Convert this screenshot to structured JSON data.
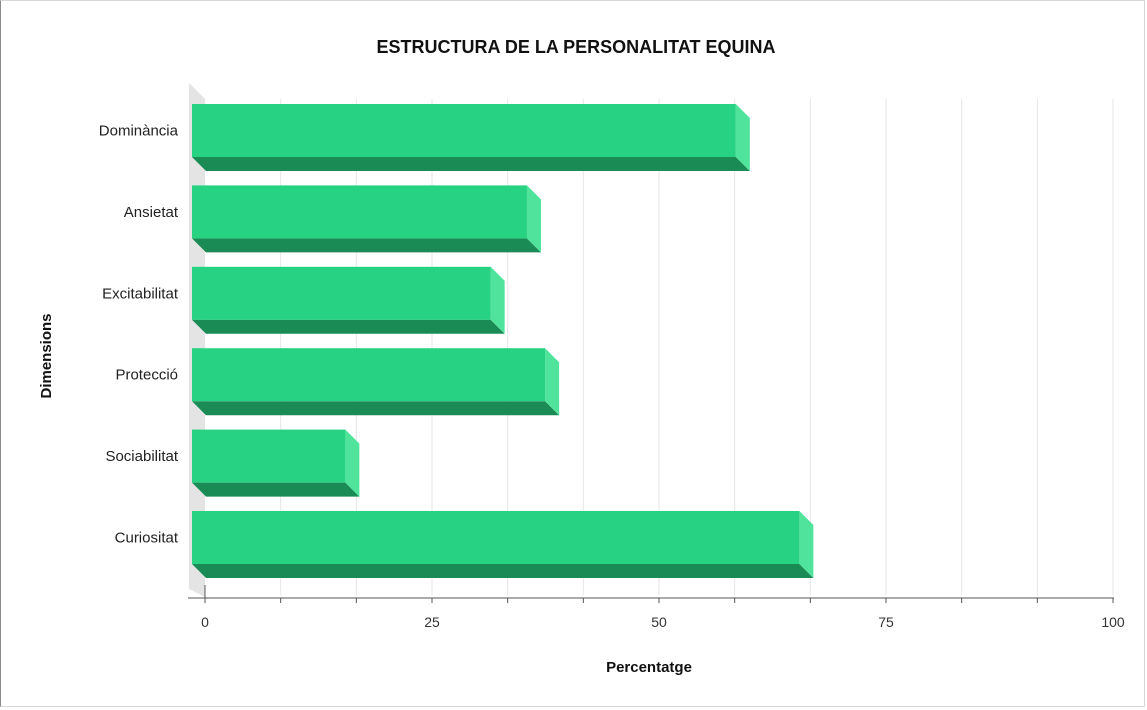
{
  "chart_data": {
    "type": "bar",
    "orientation": "horizontal",
    "title": "ESTRUCTURA DE LA PERSONALITAT EQUINA",
    "xlabel": "Percentatge",
    "ylabel": "Dimensions",
    "categories": [
      "Dominància",
      "Ansietat",
      "Excitabilitat",
      "Protecció",
      "Sociabilitat",
      "Curiositat"
    ],
    "values": [
      60,
      37,
      33,
      39,
      17,
      67
    ],
    "xlim": [
      0,
      100
    ],
    "x_ticks": [
      "0",
      "25",
      "50",
      "75",
      "100"
    ],
    "grid": true,
    "legend": "none",
    "colors": {
      "bar_front": "#27d282",
      "bar_top": "#1b8b56",
      "bar_side": "#4fe39c",
      "bar_side_top": "#18714a",
      "grid": "#e6e6e6",
      "axis": "#555555",
      "wall": "#e4e4e4"
    }
  }
}
